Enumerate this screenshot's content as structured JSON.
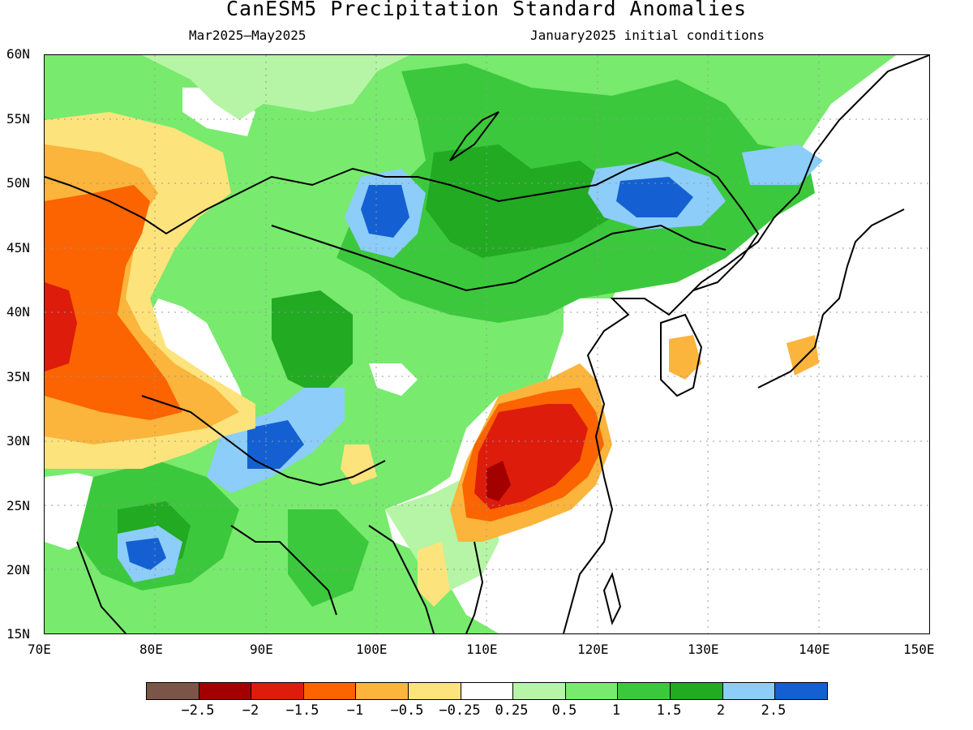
{
  "title": "CanESM5 Precipitation Standard Anomalies",
  "subtitle_left": "Mar2025–May2025",
  "subtitle_right": "January2025 initial conditions",
  "lat_labels": [
    "60N",
    "55N",
    "50N",
    "45N",
    "40N",
    "35N",
    "30N",
    "25N",
    "20N",
    "15N"
  ],
  "lon_labels": [
    "70E",
    "80E",
    "90E",
    "100E",
    "110E",
    "120E",
    "130E",
    "140E",
    "150E"
  ],
  "legend": {
    "colors": [
      "#7a5548",
      "#a30000",
      "#dd1c0c",
      "#fb6400",
      "#fbb43c",
      "#fde37c",
      "#ffffff",
      "#b6f4a6",
      "#78ea6e",
      "#3cc83c",
      "#22aa22",
      "#8ccdfa",
      "#1460d2"
    ],
    "labels": [
      "−2.5",
      "−2",
      "−1.5",
      "−1",
      "−0.5",
      "−0.25",
      "0.25",
      "0.5",
      "1",
      "1.5",
      "2",
      "2.5"
    ]
  },
  "colors": {
    "map_border": "#000000",
    "grid": "#999999"
  }
}
